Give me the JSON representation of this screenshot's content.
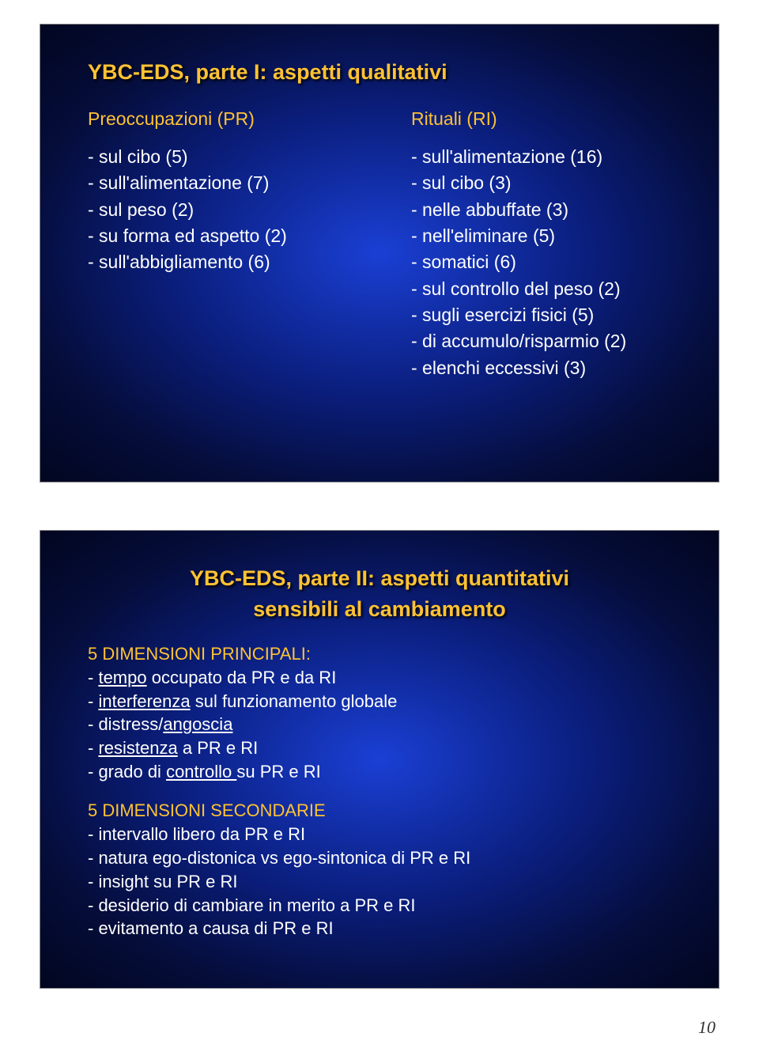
{
  "page_number": "10",
  "slide1": {
    "title": "YBC-EDS, parte I: aspetti qualitativi",
    "left": {
      "header": "Preoccupazioni (PR)",
      "items": [
        "- sul cibo (5)",
        "- sull'alimentazione (7)",
        "- sul peso (2)",
        "- su forma ed aspetto (2)",
        "- sull'abbigliamento (6)"
      ]
    },
    "right": {
      "header": "Rituali (RI)",
      "items": [
        "- sull'alimentazione (16)",
        "- sul cibo (3)",
        "- nelle abbuffate (3)",
        "- nell'eliminare (5)",
        "- somatici (6)",
        "- sul controllo del peso (2)",
        "- sugli esercizi fisici (5)",
        "- di accumulo/risparmio (2)",
        "- elenchi eccessivi (3)"
      ]
    }
  },
  "slide2": {
    "title": "YBC-EDS, parte II: aspetti quantitativi",
    "subtitle": "sensibili al cambiamento",
    "sec1_header": "5 DIMENSIONI PRINCIPALI:",
    "sec1": {
      "i0": {
        "pre": "- ",
        "u": "tempo",
        "post": " occupato da PR e da RI"
      },
      "i1": {
        "pre": "- ",
        "u": "interferenza",
        "post": " sul funzionamento globale"
      },
      "i2": {
        "pre": "- distress/",
        "u": "angoscia",
        "post": ""
      },
      "i3": {
        "pre": "- ",
        "u": "resistenza",
        "post": " a PR e RI"
      },
      "i4": {
        "pre": "- grado di ",
        "u": "controllo ",
        "post": "su PR e RI"
      }
    },
    "sec2_header": "5 DIMENSIONI SECONDARIE",
    "sec2": {
      "i0": "- intervallo libero da PR e RI",
      "i1": "- natura ego-distonica vs ego-sintonica di PR e RI",
      "i2": "- insight su PR e RI",
      "i3": "- desiderio di cambiare in merito a PR e RI",
      "i4": "- evitamento a causa di PR e RI"
    }
  }
}
